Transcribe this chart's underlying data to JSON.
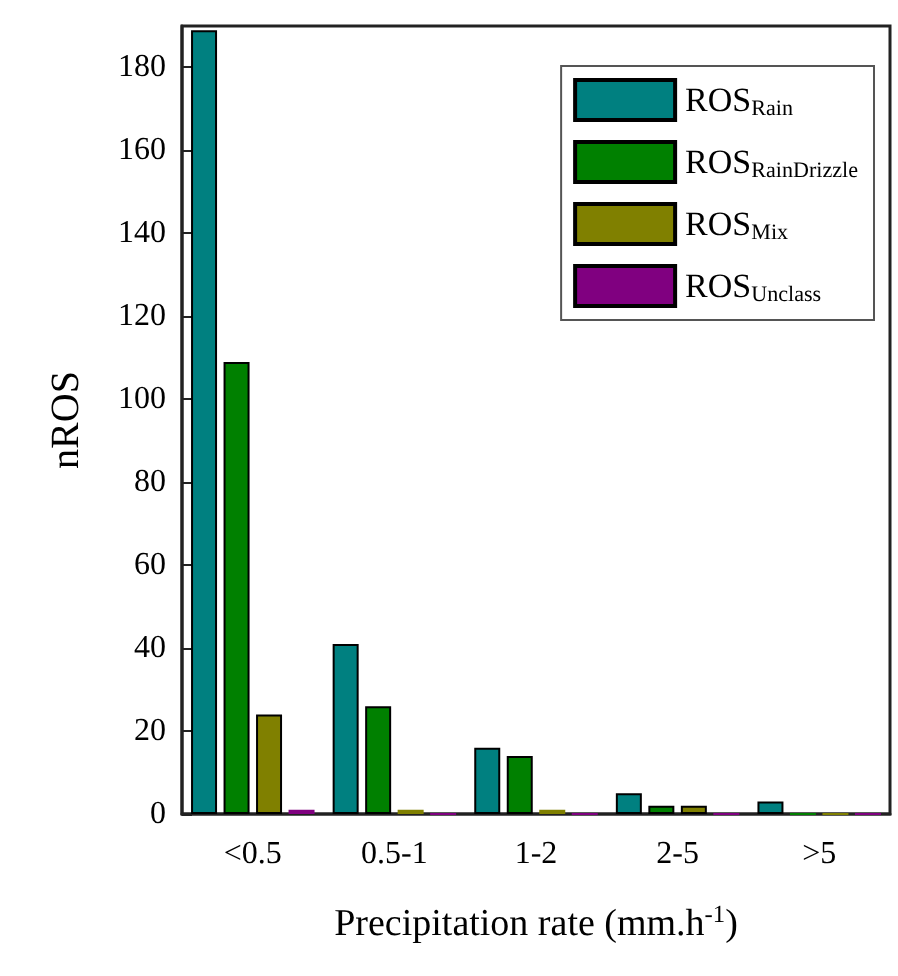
{
  "chart_data": {
    "type": "bar",
    "xlabel": "Precipitation rate (mm.h$^{-1}$)",
    "ylabel": "nROS",
    "categories": [
      "<0.5",
      "0.5-1",
      "1-2",
      "2-5",
      ">5"
    ],
    "series": [
      {
        "name": "ROS$_{Rain}$",
        "color": "#008080",
        "values": [
          189,
          41,
          16,
          5,
          3
        ]
      },
      {
        "name": "ROS$_{RainDrizzle}$",
        "color": "#008000",
        "values": [
          109,
          26,
          14,
          2,
          0
        ]
      },
      {
        "name": "ROS$_{Mix}$",
        "color": "#808000",
        "values": [
          24,
          1,
          1,
          2,
          0
        ]
      },
      {
        "name": "ROS$_{Unclass}$",
        "color": "#800080",
        "values": [
          1,
          0,
          0,
          0,
          0
        ]
      }
    ],
    "ylim": [
      0,
      190
    ],
    "yticks": [
      0,
      20,
      40,
      60,
      80,
      100,
      120,
      140,
      160,
      180
    ],
    "grid": false,
    "legend": "top right"
  }
}
